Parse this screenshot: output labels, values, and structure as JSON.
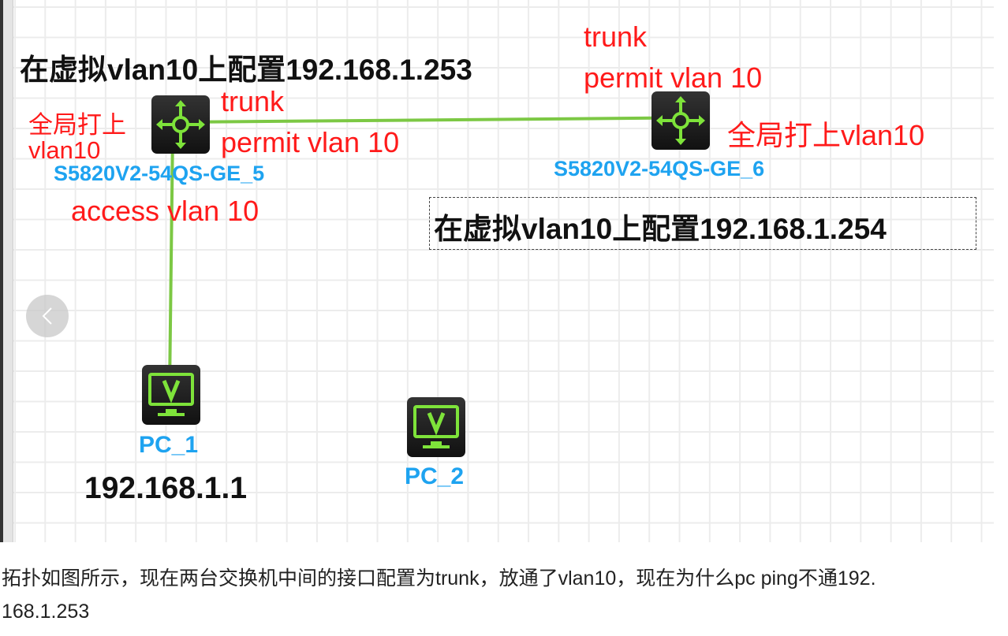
{
  "canvas": {
    "annotations": {
      "sw5_vlanif": "在虚拟vlan10上配置192.168.1.253",
      "sw6_vlanif": "在虚拟vlan10上配置192.168.1.254",
      "sw5_global_1": "全局打上",
      "sw5_global_2": "vlan10",
      "sw5_trunk_1": "trunk",
      "sw5_trunk_2": "permit vlan 10",
      "sw6_trunk_1": "trunk",
      "sw6_trunk_2": "permit vlan 10",
      "sw6_global": "全局打上vlan10",
      "access": "access  vlan 10",
      "pc1_ip": "192.168.1.1"
    },
    "devices": [
      {
        "label": "S5820V2-54QS-GE_5",
        "icon": "switch-icon"
      },
      {
        "label": "S5820V2-54QS-GE_6",
        "icon": "switch-icon"
      },
      {
        "label": "PC_1",
        "icon": "pc-icon"
      },
      {
        "label": "PC_2",
        "icon": "pc-icon"
      }
    ],
    "colors": {
      "link": "#7cc844",
      "device_label": "#1ea3f0",
      "annotation": "#ff1a1a"
    }
  },
  "question": {
    "line1": "拓扑如图所示，现在两台交换机中间的接口配置为trunk，放通了vlan10，现在为什么pc ping不通192.",
    "line2": "168.1.253"
  }
}
